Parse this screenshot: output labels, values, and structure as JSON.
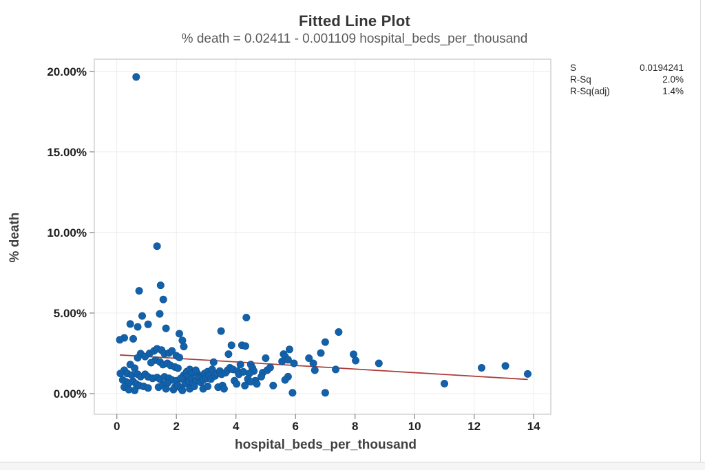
{
  "window": {
    "background": "#ffffff",
    "border_color": "#d9d9d9"
  },
  "chart_data": {
    "type": "scatter",
    "title": "Fitted Line Plot",
    "subtitle": "% death = 0.02411 - 0.001109 hospital_beds_per_thousand",
    "xlabel": "hospital_beds_per_thousand",
    "ylabel": "% death",
    "x_tick_values": [
      0,
      2,
      4,
      6,
      8,
      10,
      12,
      14
    ],
    "x_tick_labels": [
      "0",
      "2",
      "4",
      "6",
      "8",
      "10",
      "12",
      "14"
    ],
    "y_tick_values": [
      0,
      5,
      10,
      15,
      20
    ],
    "y_tick_labels": [
      "0.00%",
      "5.00%",
      "10.00%",
      "15.00%",
      "20.00%"
    ],
    "xlim": [
      -0.76,
      14.57
    ],
    "ylim_pct": [
      -1.28,
      20.75
    ],
    "grid": "light gray, both axes",
    "legend_position": "none",
    "stats_table": [
      {
        "label": "S",
        "value": "0.0194241"
      },
      {
        "label": "R-Sq",
        "value": "2.0%"
      },
      {
        "label": "R-Sq(adj)",
        "value": "1.4%"
      }
    ],
    "fit_line": {
      "equation": "% death = 0.02411 - 0.001109 hospital_beds_per_thousand",
      "intercept_pct": 2.411,
      "slope_pct_per_unit": -0.1109,
      "x_start": 0.1,
      "x_end": 13.8
    },
    "colors": {
      "point": "#1261aa",
      "point_edge": "#0f538f",
      "fit_line": "#ac3f3a",
      "grid": "#ececec",
      "frame": "#c6c6c6",
      "tick": "#8c8c8c",
      "title": "#363636",
      "subtitle": "#595959",
      "axis_label": "#404040",
      "tick_label": "#1f1f1f",
      "stats_text": "#262626"
    },
    "points": [
      [
        0.65,
        19.65
      ],
      [
        1.35,
        9.15
      ],
      [
        1.47,
        6.72
      ],
      [
        0.75,
        6.38
      ],
      [
        1.56,
        5.84
      ],
      [
        1.44,
        4.95
      ],
      [
        0.85,
        4.82
      ],
      [
        4.35,
        4.72
      ],
      [
        0.45,
        4.32
      ],
      [
        1.05,
        4.3
      ],
      [
        0.7,
        4.14
      ],
      [
        1.65,
        4.05
      ],
      [
        7.45,
        3.82
      ],
      [
        3.5,
        3.88
      ],
      [
        2.1,
        3.72
      ],
      [
        0.25,
        3.46
      ],
      [
        0.1,
        3.34
      ],
      [
        0.55,
        3.4
      ],
      [
        2.2,
        3.3
      ],
      [
        2.25,
        2.92
      ],
      [
        3.85,
        3.0
      ],
      [
        4.2,
        3.0
      ],
      [
        4.32,
        2.95
      ],
      [
        7.0,
        3.2
      ],
      [
        3.75,
        2.45
      ],
      [
        5.8,
        2.74
      ],
      [
        6.85,
        2.52
      ],
      [
        5.6,
        2.45
      ],
      [
        5.65,
        2.3
      ],
      [
        6.45,
        2.2
      ],
      [
        5.0,
        2.2
      ],
      [
        5.55,
        2.0
      ],
      [
        5.75,
        2.1
      ],
      [
        5.95,
        1.88
      ],
      [
        6.6,
        1.88
      ],
      [
        6.65,
        1.45
      ],
      [
        7.95,
        2.44
      ],
      [
        8.02,
        2.05
      ],
      [
        8.8,
        1.88
      ],
      [
        7.35,
        1.5
      ],
      [
        11.0,
        0.62
      ],
      [
        12.25,
        1.6
      ],
      [
        13.05,
        1.72
      ],
      [
        13.8,
        1.22
      ],
      [
        0.8,
        2.48
      ],
      [
        0.7,
        2.22
      ],
      [
        0.95,
        2.3
      ],
      [
        1.1,
        2.5
      ],
      [
        1.25,
        2.65
      ],
      [
        1.35,
        2.78
      ],
      [
        1.5,
        2.7
      ],
      [
        1.6,
        2.48
      ],
      [
        1.75,
        2.52
      ],
      [
        1.85,
        2.65
      ],
      [
        2.0,
        2.35
      ],
      [
        2.1,
        2.24
      ],
      [
        1.3,
        2.08
      ],
      [
        1.15,
        1.92
      ],
      [
        1.45,
        1.96
      ],
      [
        1.55,
        1.8
      ],
      [
        1.7,
        1.88
      ],
      [
        1.8,
        1.75
      ],
      [
        1.95,
        1.65
      ],
      [
        2.05,
        1.58
      ],
      [
        0.45,
        1.8
      ],
      [
        0.6,
        1.58
      ],
      [
        0.25,
        1.45
      ],
      [
        0.35,
        1.25
      ],
      [
        0.12,
        1.25
      ],
      [
        2.25,
        1.15
      ],
      [
        2.35,
        1.36
      ],
      [
        2.45,
        1.5
      ],
      [
        2.6,
        1.36
      ],
      [
        2.7,
        1.25
      ],
      [
        2.85,
        1.06
      ],
      [
        2.95,
        1.25
      ],
      [
        3.05,
        1.36
      ],
      [
        3.2,
        1.5
      ],
      [
        2.5,
        1.2
      ],
      [
        2.65,
        1.45
      ],
      [
        2.35,
        1.05
      ],
      [
        2.2,
        0.92
      ],
      [
        3.25,
        1.95
      ],
      [
        0.5,
        1.15
      ],
      [
        0.7,
        1.2
      ],
      [
        0.8,
        1.06
      ],
      [
        0.95,
        1.2
      ],
      [
        1.05,
        1.04
      ],
      [
        1.2,
        0.95
      ],
      [
        1.35,
        1.0
      ],
      [
        1.45,
        0.9
      ],
      [
        1.6,
        1.04
      ],
      [
        1.75,
        0.95
      ],
      [
        1.85,
        0.85
      ],
      [
        2.0,
        0.8
      ],
      [
        2.15,
        0.95
      ],
      [
        0.2,
        0.85
      ],
      [
        0.3,
        0.74
      ],
      [
        0.4,
        0.65
      ],
      [
        0.55,
        0.75
      ],
      [
        0.65,
        0.6
      ],
      [
        0.75,
        0.5
      ],
      [
        2.3,
        0.62
      ],
      [
        2.42,
        0.75
      ],
      [
        2.52,
        0.9
      ],
      [
        2.56,
        0.65
      ],
      [
        2.66,
        0.8
      ],
      [
        2.78,
        0.95
      ],
      [
        2.82,
        0.7
      ],
      [
        2.9,
        0.85
      ],
      [
        3.0,
        0.95
      ],
      [
        3.1,
        1.1
      ],
      [
        3.16,
        0.9
      ],
      [
        3.3,
        1.1
      ],
      [
        3.36,
        1.25
      ],
      [
        3.46,
        1.4
      ],
      [
        3.52,
        1.2
      ],
      [
        3.65,
        1.3
      ],
      [
        3.72,
        1.45
      ],
      [
        3.8,
        1.6
      ],
      [
        3.9,
        1.5
      ],
      [
        4.05,
        1.4
      ],
      [
        4.1,
        1.2
      ],
      [
        4.25,
        1.35
      ],
      [
        4.15,
        1.8
      ],
      [
        4.5,
        1.8
      ],
      [
        4.55,
        1.6
      ],
      [
        4.6,
        1.4
      ],
      [
        4.45,
        1.25
      ],
      [
        4.9,
        1.3
      ],
      [
        5.05,
        1.45
      ],
      [
        5.15,
        1.62
      ],
      [
        4.85,
        1.05
      ],
      [
        5.75,
        1.05
      ],
      [
        5.65,
        0.85
      ],
      [
        4.65,
        0.8
      ],
      [
        4.7,
        0.6
      ],
      [
        3.95,
        0.8
      ],
      [
        4.02,
        0.6
      ],
      [
        4.4,
        0.9
      ],
      [
        4.5,
        0.74
      ],
      [
        0.25,
        0.4
      ],
      [
        0.4,
        0.25
      ],
      [
        0.6,
        0.2
      ],
      [
        0.9,
        0.45
      ],
      [
        1.05,
        0.35
      ],
      [
        1.4,
        0.4
      ],
      [
        1.55,
        0.55
      ],
      [
        1.7,
        0.65
      ],
      [
        1.65,
        0.3
      ],
      [
        1.9,
        0.25
      ],
      [
        1.95,
        0.4
      ],
      [
        2.05,
        0.5
      ],
      [
        2.15,
        0.35
      ],
      [
        2.2,
        0.2
      ],
      [
        2.45,
        0.3
      ],
      [
        2.6,
        0.45
      ],
      [
        2.9,
        0.3
      ],
      [
        3.05,
        0.45
      ],
      [
        3.4,
        0.4
      ],
      [
        3.55,
        0.5
      ],
      [
        3.6,
        0.3
      ],
      [
        4.3,
        0.5
      ],
      [
        5.25,
        0.5
      ],
      [
        5.9,
        0.05
      ],
      [
        7.0,
        0.05
      ]
    ]
  }
}
